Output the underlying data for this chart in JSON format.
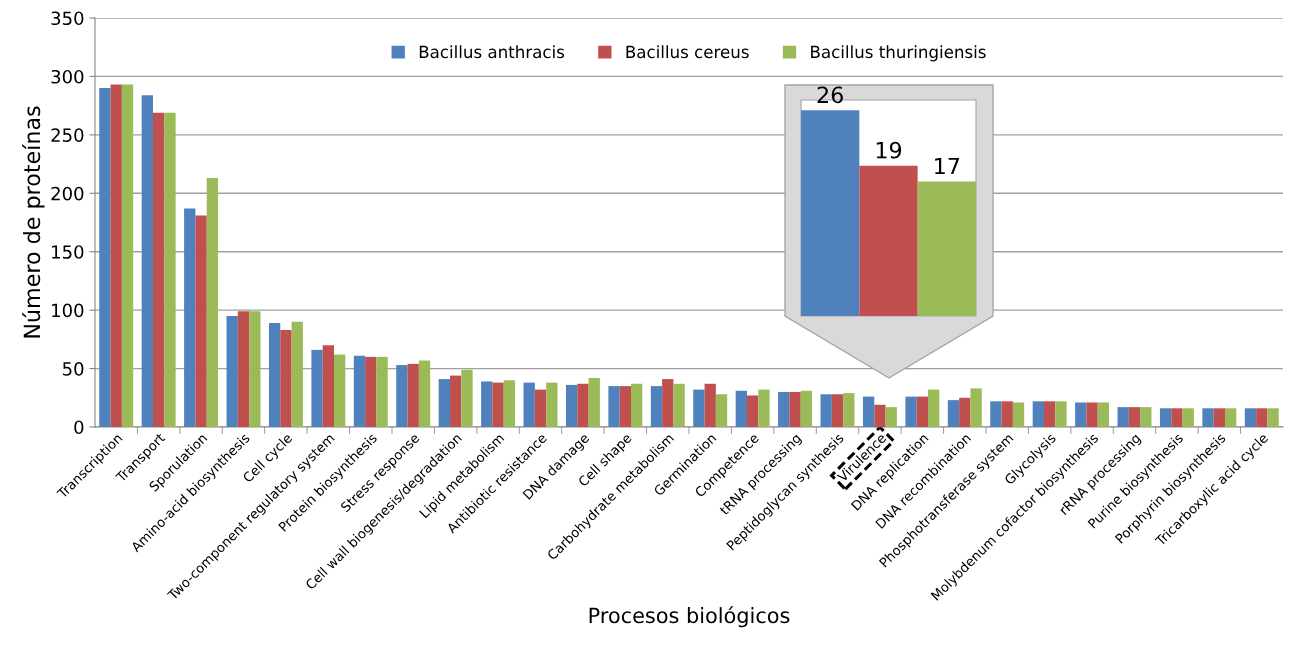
{
  "chart_data": [
    {
      "type": "bar",
      "xlabel": "Procesos biológicos",
      "ylabel": "Número de proteínas",
      "categories": [
        "Transcription",
        "Transport",
        "Sporulation",
        "Amino-acid biosynthesis",
        "Cell cycle",
        "Two-component regulatory system",
        "Protein biosynthesis",
        "Stress response",
        "Cell wall biogenesis/degradation",
        "Lipid metabolism",
        "Antibiotic resistance",
        "DNA damage",
        "Cell shape",
        "Carbohydrate metabolism",
        "Germination",
        "Competence",
        "tRNA processing",
        "Peptidoglycan synthesis",
        "Virulence",
        "DNA replication",
        "DNA recombination",
        "Phosphotransferase system",
        "Glycolysis",
        "Molybdenum cofactor biosynthesis",
        "rRNA processing",
        "Purine biosynthesis",
        "Porphyrin biosynthesis",
        "Tricarboxylic acid cycle"
      ],
      "series": [
        {
          "name": "Bacillus anthracis",
          "color": "#4f81bd",
          "values": [
            290,
            284,
            187,
            95,
            89,
            66,
            61,
            53,
            41,
            39,
            38,
            36,
            35,
            35,
            32,
            31,
            30,
            28,
            26,
            26,
            23,
            22,
            22,
            21,
            17,
            16,
            16,
            16
          ]
        },
        {
          "name": "Bacillus cereus",
          "color": "#c0504d",
          "values": [
            293,
            269,
            181,
            99,
            83,
            70,
            60,
            54,
            44,
            38,
            32,
            37,
            35,
            41,
            37,
            27,
            30,
            28,
            19,
            26,
            25,
            22,
            22,
            21,
            17,
            16,
            16,
            16
          ]
        },
        {
          "name": "Bacillus thuringiensis",
          "color": "#9bbb59",
          "values": [
            293,
            269,
            213,
            99,
            90,
            62,
            60,
            57,
            49,
            40,
            38,
            42,
            37,
            37,
            28,
            32,
            31,
            29,
            17,
            32,
            33,
            21,
            22,
            21,
            17,
            16,
            16,
            16
          ]
        }
      ],
      "ylim": [
        0,
        350
      ],
      "yticks": [
        0,
        50,
        100,
        150,
        200,
        250,
        300,
        350
      ],
      "grid": "y",
      "legend": "top"
    },
    {
      "type": "bar",
      "categories": [
        null
      ],
      "series": [
        {
          "color": "#4f81bd",
          "values": [
            26
          ]
        },
        {
          "color": "#c0504d",
          "values": [
            19
          ]
        },
        {
          "color": "#9bbb59",
          "values": [
            17
          ]
        }
      ],
      "data_labels": true
    }
  ]
}
